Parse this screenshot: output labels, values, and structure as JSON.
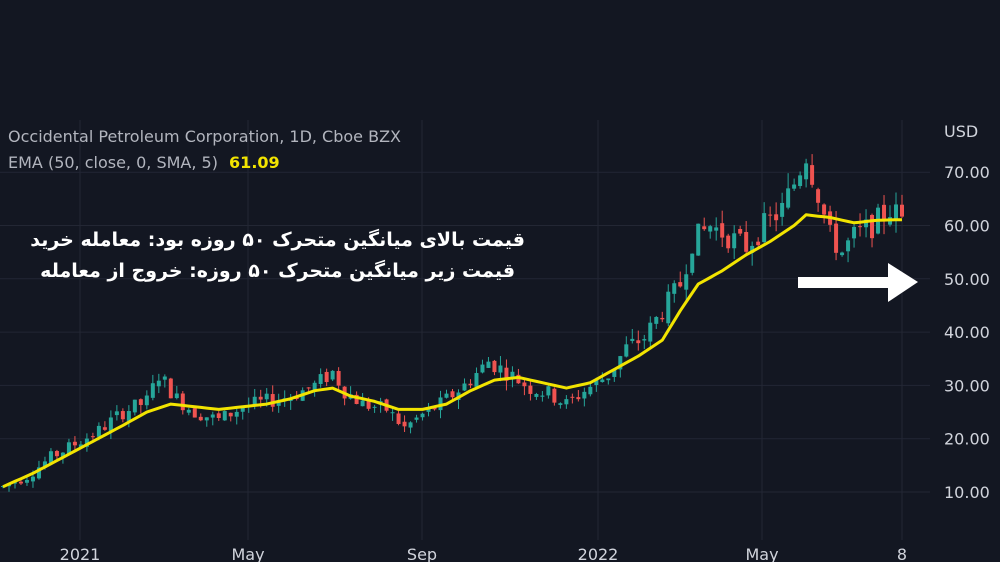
{
  "legend": {
    "symbol": "Occidental Petroleum Corporation, 1D, Cboe BZX",
    "indicator": "EMA (50, close, 0, SMA, 5)",
    "indicator_value": "61.09"
  },
  "annotation": {
    "line1": "قیمت بالای میانگین متحرک ۵۰ روزه بود: معامله خرید",
    "line2": "قیمت زیر میانگین متحرک ۵۰ روزه: خروج از معامله"
  },
  "colors": {
    "background": "#131722",
    "grid": "#232734",
    "up": "#26a69a",
    "down": "#ef5350",
    "ema": "#f2e400",
    "arrow": "#ffffff"
  },
  "arrow": {
    "icon": "right-arrow-icon"
  },
  "chart_data": {
    "type": "candlestick",
    "unit": "USD",
    "ylim": [
      2,
      80
    ],
    "y_ticks": [
      "10.00",
      "20.00",
      "30.00",
      "40.00",
      "50.00",
      "60.00",
      "70.00"
    ],
    "x_ticks": [
      "2021",
      "May",
      "Sep",
      "2022",
      "May",
      "8"
    ],
    "grid": true,
    "price_path": [
      [
        0,
        11
      ],
      [
        4,
        13
      ],
      [
        8,
        16.5
      ],
      [
        12,
        19
      ],
      [
        16,
        21.5
      ],
      [
        20,
        25
      ],
      [
        24,
        27
      ],
      [
        26,
        32
      ],
      [
        29,
        27.5
      ],
      [
        32,
        25
      ],
      [
        36,
        23.5
      ],
      [
        40,
        26
      ],
      [
        44,
        27
      ],
      [
        48,
        28
      ],
      [
        52,
        30
      ],
      [
        55,
        32.5
      ],
      [
        57,
        29
      ],
      [
        60,
        26.5
      ],
      [
        64,
        25.5
      ],
      [
        67,
        22
      ],
      [
        70,
        24.5
      ],
      [
        73,
        26.5
      ],
      [
        77,
        30
      ],
      [
        81,
        34.5
      ],
      [
        84,
        32.5
      ],
      [
        88,
        29.5
      ],
      [
        91,
        28.5
      ],
      [
        94,
        26.5
      ],
      [
        97,
        29
      ],
      [
        101,
        32
      ],
      [
        104,
        37
      ],
      [
        107,
        39
      ],
      [
        110,
        44
      ],
      [
        113,
        49
      ],
      [
        115,
        57
      ],
      [
        118,
        60
      ],
      [
        121,
        58
      ],
      [
        124,
        56
      ],
      [
        127,
        60
      ],
      [
        130,
        63
      ],
      [
        132,
        68
      ],
      [
        134,
        73.5
      ],
      [
        136,
        66
      ],
      [
        138,
        58
      ],
      [
        140,
        55
      ],
      [
        142,
        58
      ],
      [
        145,
        60
      ],
      [
        148,
        63
      ],
      [
        150,
        61.5
      ]
    ],
    "ema_path": [
      [
        0,
        11
      ],
      [
        5,
        13.5
      ],
      [
        10,
        16.5
      ],
      [
        15,
        19.5
      ],
      [
        20,
        22.5
      ],
      [
        24,
        25
      ],
      [
        28,
        26.5
      ],
      [
        32,
        26
      ],
      [
        36,
        25.5
      ],
      [
        40,
        26
      ],
      [
        44,
        26.5
      ],
      [
        48,
        27.5
      ],
      [
        52,
        29
      ],
      [
        55,
        29.5
      ],
      [
        58,
        28
      ],
      [
        62,
        27
      ],
      [
        66,
        25.5
      ],
      [
        70,
        25.5
      ],
      [
        74,
        26.5
      ],
      [
        78,
        29
      ],
      [
        82,
        31
      ],
      [
        86,
        31.5
      ],
      [
        90,
        30.5
      ],
      [
        94,
        29.5
      ],
      [
        98,
        30.5
      ],
      [
        102,
        33
      ],
      [
        106,
        35.5
      ],
      [
        110,
        38.5
      ],
      [
        113,
        44
      ],
      [
        116,
        49
      ],
      [
        120,
        51.5
      ],
      [
        124,
        54.5
      ],
      [
        128,
        57
      ],
      [
        132,
        60
      ],
      [
        134,
        62
      ],
      [
        138,
        61.5
      ],
      [
        142,
        60.5
      ],
      [
        146,
        61
      ],
      [
        150,
        61.09
      ]
    ]
  }
}
